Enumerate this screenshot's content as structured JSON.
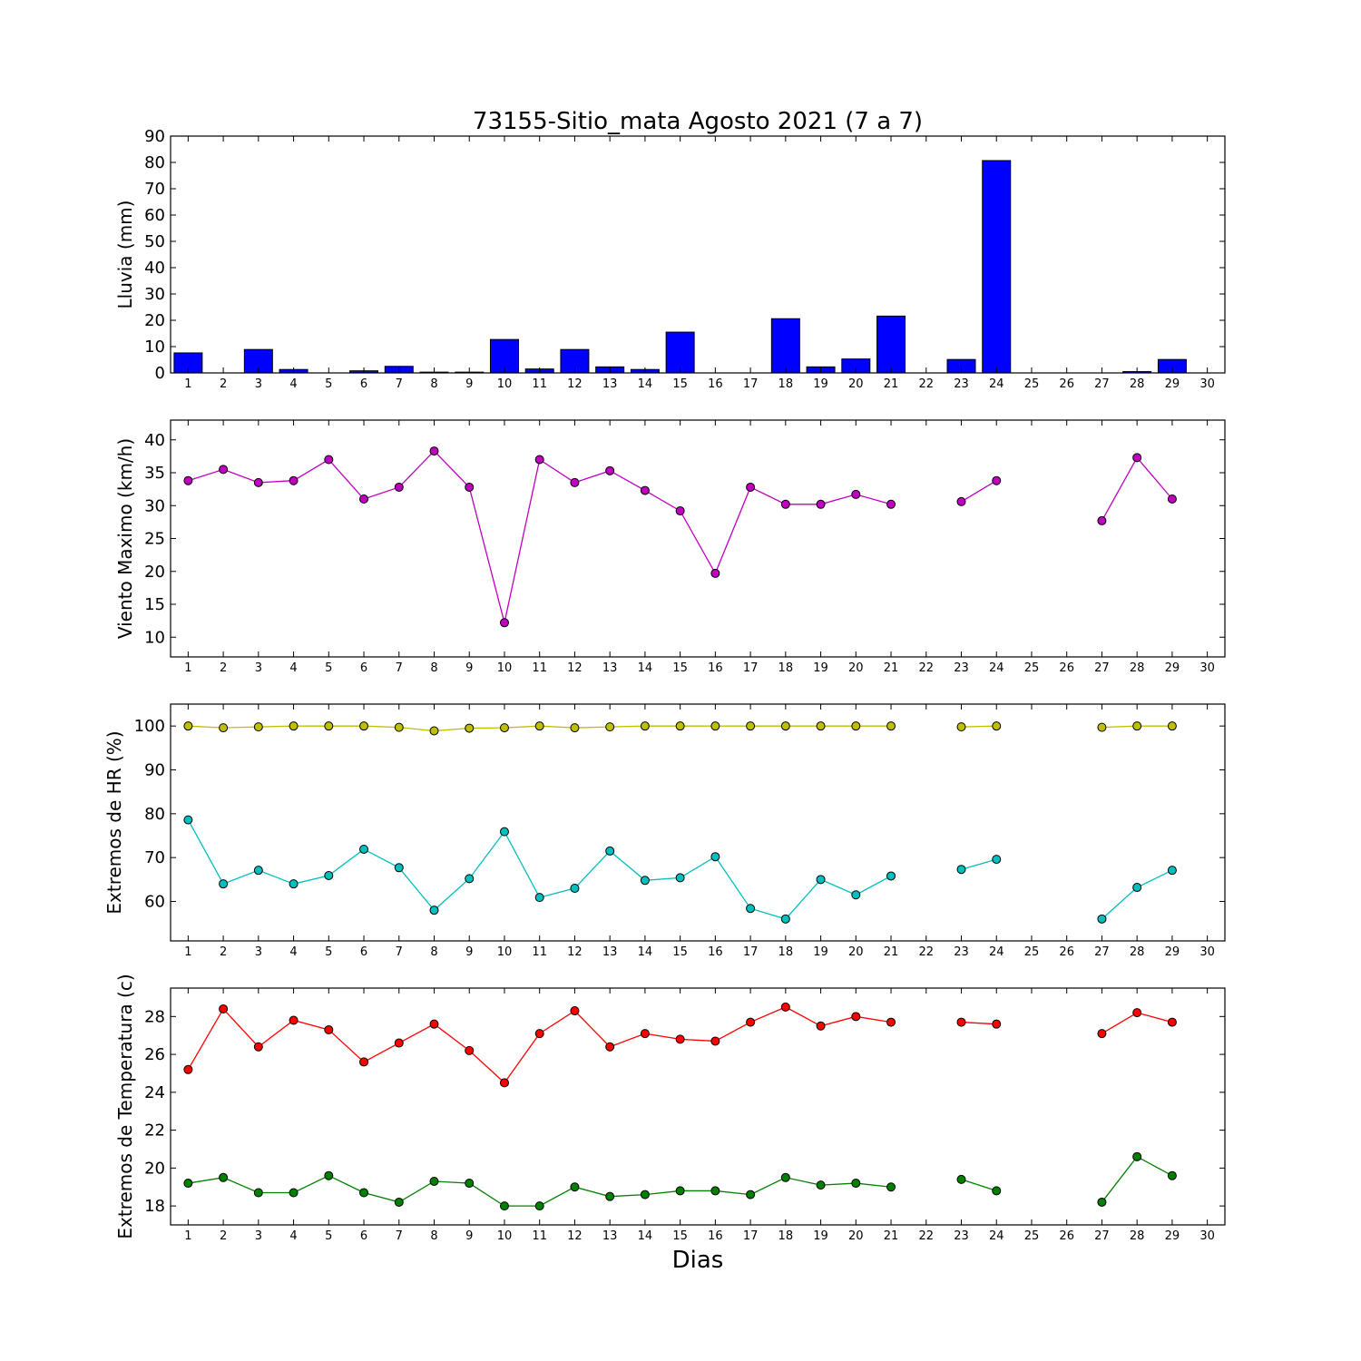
{
  "chart_data": [
    {
      "type": "bar",
      "title": "73155-Sitio_mata Agosto 2021  (7 a 7)",
      "ylabel": "Lluvia (mm)",
      "xlabel": "",
      "ylim": [
        0,
        90
      ],
      "yticks": [
        0,
        10,
        20,
        30,
        40,
        50,
        60,
        70,
        80,
        90
      ],
      "xlim": [
        0.5,
        30.5
      ],
      "x": [
        1,
        2,
        3,
        4,
        5,
        6,
        7,
        8,
        9,
        10,
        11,
        12,
        13,
        14,
        15,
        16,
        17,
        18,
        19,
        20,
        21,
        22,
        23,
        24,
        25,
        26,
        27,
        28,
        29,
        30
      ],
      "values": [
        7.6,
        0,
        8.9,
        1.3,
        0,
        0.8,
        2.5,
        0.3,
        0.3,
        12.7,
        1.5,
        8.9,
        2.3,
        1.3,
        15.5,
        0,
        0,
        20.6,
        2.3,
        5.3,
        21.6,
        null,
        5.1,
        80.7,
        0,
        0,
        0,
        0.5,
        5.1,
        null
      ],
      "color": "#0000ff"
    },
    {
      "type": "line",
      "ylabel": "Viento Maximo (km/h)",
      "xlabel": "",
      "ylim": [
        7,
        43
      ],
      "yticks": [
        10,
        15,
        20,
        25,
        30,
        35,
        40
      ],
      "xlim": [
        0.5,
        30.5
      ],
      "x": [
        1,
        2,
        3,
        4,
        5,
        6,
        7,
        8,
        9,
        10,
        11,
        12,
        13,
        14,
        15,
        16,
        17,
        18,
        19,
        20,
        21,
        22,
        23,
        24,
        25,
        26,
        27,
        28,
        29,
        30
      ],
      "series": [
        {
          "values": [
            33.8,
            35.5,
            33.5,
            33.8,
            37.0,
            31.0,
            32.8,
            38.3,
            32.8,
            12.2,
            37.0,
            33.5,
            35.3,
            32.3,
            29.2,
            19.7,
            32.8,
            30.2,
            30.2,
            31.7,
            30.2,
            null,
            30.6,
            33.8,
            null,
            null,
            27.7,
            37.3,
            31.0,
            null
          ],
          "color": "#bf00bf"
        }
      ]
    },
    {
      "type": "line",
      "ylabel": "Extremos de HR (%)",
      "xlabel": "",
      "ylim": [
        51,
        105
      ],
      "yticks": [
        60,
        70,
        80,
        90,
        100
      ],
      "xlim": [
        0.5,
        30.5
      ],
      "x": [
        1,
        2,
        3,
        4,
        5,
        6,
        7,
        8,
        9,
        10,
        11,
        12,
        13,
        14,
        15,
        16,
        17,
        18,
        19,
        20,
        21,
        22,
        23,
        24,
        25,
        26,
        27,
        28,
        29,
        30
      ],
      "series": [
        {
          "values": [
            100,
            99.6,
            99.8,
            100,
            100,
            100,
            99.7,
            98.9,
            99.5,
            99.6,
            100,
            99.6,
            99.8,
            100,
            100,
            100,
            100,
            100,
            100,
            100,
            100,
            null,
            99.8,
            100,
            null,
            null,
            99.7,
            100,
            100,
            null
          ],
          "color": "#bfbf00"
        },
        {
          "values": [
            78.6,
            64.0,
            67.1,
            64.0,
            65.9,
            71.9,
            67.7,
            58.0,
            65.2,
            75.9,
            60.9,
            63.0,
            71.5,
            64.8,
            65.4,
            70.2,
            58.4,
            56.0,
            65.0,
            61.5,
            65.8,
            null,
            67.3,
            69.6,
            null,
            null,
            56.0,
            63.2,
            67.1,
            null
          ],
          "color": "#00bfbf"
        }
      ]
    },
    {
      "type": "line",
      "ylabel": "Extremos de Temperatura (c)",
      "xlabel": "Dias",
      "ylim": [
        17,
        29.5
      ],
      "yticks": [
        18,
        20,
        22,
        24,
        26,
        28
      ],
      "xlim": [
        0.5,
        30.5
      ],
      "x": [
        1,
        2,
        3,
        4,
        5,
        6,
        7,
        8,
        9,
        10,
        11,
        12,
        13,
        14,
        15,
        16,
        17,
        18,
        19,
        20,
        21,
        22,
        23,
        24,
        25,
        26,
        27,
        28,
        29,
        30
      ],
      "series": [
        {
          "values": [
            25.2,
            28.4,
            26.4,
            27.8,
            27.3,
            25.6,
            26.6,
            27.6,
            26.2,
            24.5,
            27.1,
            28.3,
            26.4,
            27.1,
            26.8,
            26.7,
            27.7,
            28.5,
            27.5,
            28.0,
            27.7,
            null,
            27.7,
            27.6,
            null,
            null,
            27.1,
            28.2,
            27.7,
            null
          ],
          "color": "#ff0000"
        },
        {
          "values": [
            19.2,
            19.5,
            18.7,
            18.7,
            19.6,
            18.7,
            18.2,
            19.3,
            19.2,
            18.0,
            18.0,
            19.0,
            18.5,
            18.6,
            18.8,
            18.8,
            18.6,
            19.5,
            19.1,
            19.2,
            19.0,
            null,
            19.4,
            18.8,
            null,
            null,
            18.2,
            20.6,
            19.6,
            null
          ],
          "color": "#008000"
        }
      ]
    }
  ]
}
